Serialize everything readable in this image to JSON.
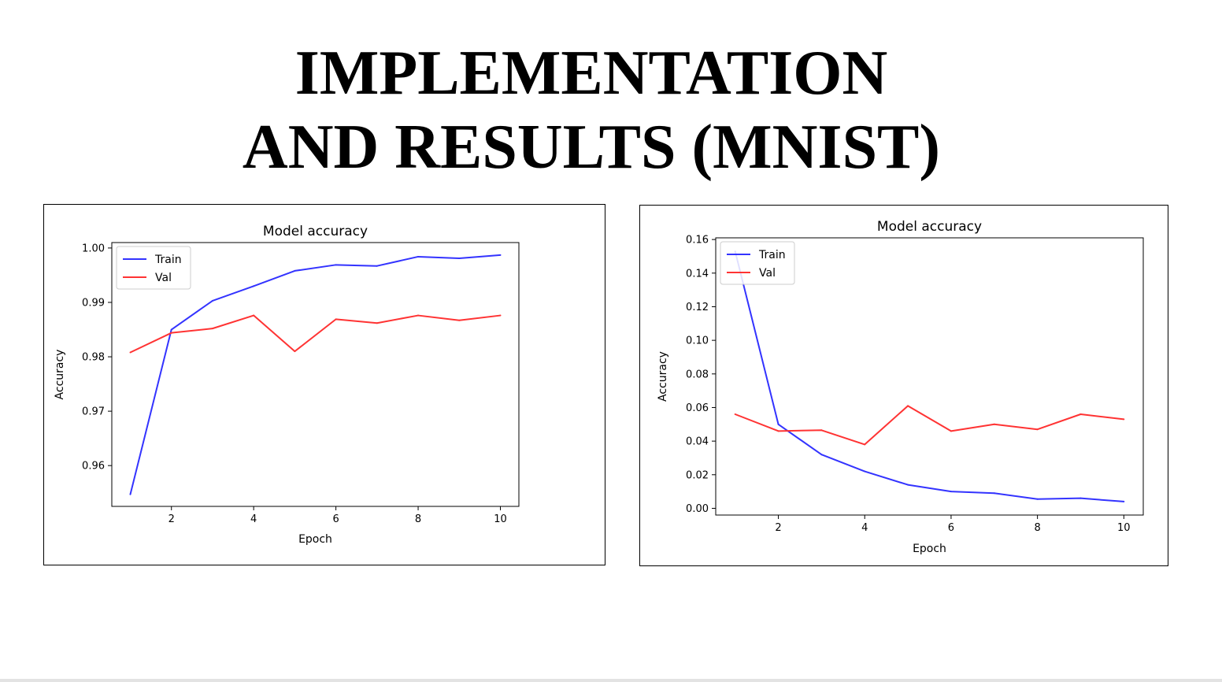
{
  "slide": {
    "title_line1": "IMPLEMENTATION",
    "title_line2": "AND RESULTS (MNIST)"
  },
  "chart_data": [
    {
      "type": "line",
      "title": "Model accuracy",
      "xlabel": "Epoch",
      "ylabel": "Accuracy",
      "x": [
        1,
        2,
        3,
        4,
        5,
        6,
        7,
        8,
        9,
        10
      ],
      "xticks": [
        2,
        4,
        6,
        8,
        10
      ],
      "xlim": [
        0.55,
        10.45
      ],
      "yticks": [
        0.96,
        0.97,
        0.98,
        0.99,
        1.0
      ],
      "ytick_labels": [
        "0.96",
        "0.97",
        "0.98",
        "0.99",
        "1.00"
      ],
      "ylim": [
        0.9525,
        1.001
      ],
      "grid": false,
      "legend": "top-left",
      "series": [
        {
          "name": "Train",
          "color": "#3333ff",
          "values": [
            0.9547,
            0.985,
            0.9903,
            0.993,
            0.9958,
            0.9969,
            0.9967,
            0.9984,
            0.9981,
            0.9987
          ]
        },
        {
          "name": "Val",
          "color": "#ff3333",
          "values": [
            0.9808,
            0.9844,
            0.9852,
            0.9876,
            0.981,
            0.9869,
            0.9862,
            0.9876,
            0.9867,
            0.9876
          ]
        }
      ]
    },
    {
      "type": "line",
      "title": "Model accuracy",
      "xlabel": "Epoch",
      "ylabel": "Accuracy",
      "x": [
        1,
        2,
        3,
        4,
        5,
        6,
        7,
        8,
        9,
        10
      ],
      "xticks": [
        2,
        4,
        6,
        8,
        10
      ],
      "xlim": [
        0.55,
        10.45
      ],
      "yticks": [
        0.0,
        0.02,
        0.04,
        0.06,
        0.08,
        0.1,
        0.12,
        0.14,
        0.16
      ],
      "ytick_labels": [
        "0.00",
        "0.02",
        "0.04",
        "0.06",
        "0.08",
        "0.10",
        "0.12",
        "0.14",
        "0.16"
      ],
      "ylim": [
        -0.004,
        0.161
      ],
      "grid": false,
      "legend": "top-left",
      "series": [
        {
          "name": "Train",
          "color": "#3333ff",
          "values": [
            0.153,
            0.05,
            0.032,
            0.022,
            0.014,
            0.01,
            0.009,
            0.0055,
            0.006,
            0.004
          ]
        },
        {
          "name": "Val",
          "color": "#ff3333",
          "values": [
            0.056,
            0.046,
            0.0465,
            0.038,
            0.061,
            0.046,
            0.05,
            0.047,
            0.056,
            0.053
          ]
        }
      ]
    }
  ]
}
